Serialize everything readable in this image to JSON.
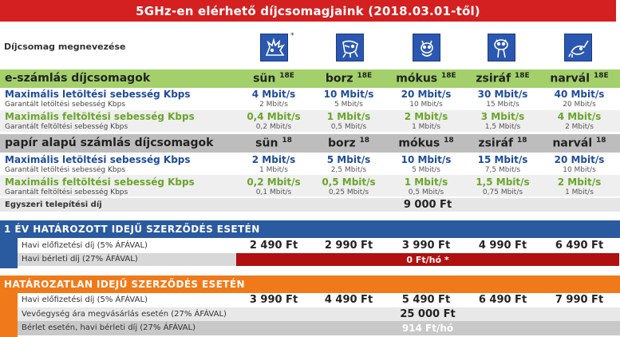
{
  "title": "5GHz-en elérhető díjcsomagjaink (2018.03.01-től)",
  "name_label": "Díjcsomag megnevezése",
  "icon_star": "*",
  "icons": [
    "hedgehog-icon",
    "badger-icon",
    "squirrel-icon",
    "giraffe-icon",
    "narwhal-icon"
  ],
  "e_section": {
    "label": "e-számlás díjcsomagok",
    "packages": [
      {
        "name": "sün",
        "sup": "18E"
      },
      {
        "name": "borz",
        "sup": "18E"
      },
      {
        "name": "mókus",
        "sup": "18E"
      },
      {
        "name": "zsiráf",
        "sup": "18E"
      },
      {
        "name": "narvál",
        "sup": "18E"
      }
    ],
    "max_down_label": "Maximális letöltési sebesség Kbps",
    "max_down": [
      "4 Mbit/s",
      "10 Mbit/s",
      "20 Mbit/s",
      "30 Mbit/s",
      "40 Mbit/s"
    ],
    "guar_down_label": "Garantált letöltési sebesség  Kbps",
    "guar_down": [
      "2 Mbit/s",
      "5 Mbit/s",
      "10 Mbit/s",
      "15 Mbit/s",
      "20 Mbit/s"
    ],
    "max_up_label": "Maximális feltöltési sebesség  Kbps",
    "max_up": [
      "0,4 Mbit/s",
      "1 Mbit/s",
      "2 Mbit/s",
      "3 Mbit/s",
      "4 Mbit/s"
    ],
    "guar_up_label": "Garantált feltöltési sebesség  Kbps",
    "guar_up": [
      "0,2 Mbit/s",
      "0,5 Mbit/s",
      "1 Mbit/s",
      "1,5 Mbit/s",
      "2 Mbit/s"
    ]
  },
  "p_section": {
    "label": "papír alapú számlás díjcsomagok",
    "packages": [
      {
        "name": "sün",
        "sup": "18"
      },
      {
        "name": "borz",
        "sup": "18"
      },
      {
        "name": "mókus",
        "sup": "18"
      },
      {
        "name": "zsiráf",
        "sup": "18"
      },
      {
        "name": "narvál",
        "sup": "18"
      }
    ],
    "max_down_label": "Maximális letöltési sebesség Kbps",
    "max_down": [
      "2 Mbit/s",
      "5 Mbit/s",
      "10 Mbit/s",
      "15 Mbit/s",
      "20 Mbit/s"
    ],
    "guar_down_label": "Garantált letöltési sebesség  Kbps",
    "guar_down": [
      "1 Mbit/s",
      "2,5 Mbit/s",
      "5 Mbit/s",
      "7,5 Mbit/s",
      "10 Mbit/s"
    ],
    "max_up_label": "Maximális feltöltési sebesség  Kbps",
    "max_up": [
      "0,2 Mbit/s",
      "0,5 Mbit/s",
      "1 Mbit/s",
      "1,5 Mbit/s",
      "2 Mbit/s"
    ],
    "guar_up_label": "Garantált feltöltési sebesség  Kbps",
    "guar_up": [
      "0,1 Mbit/s",
      "0,25 Mbit/s",
      "0,5 Mbit/s",
      "0,75 Mbit/s",
      "1 Mbit/s"
    ]
  },
  "setup_fee_label": "Egyszeri telepítési díj",
  "setup_fee": "9 000 Ft",
  "fixed": {
    "title": "1 ÉV HATÁROZOTT IDEJŰ SZERZŐDÉS ESETÉN",
    "monthly_label": "Havi előfizetési díj (5% ÁFÁVAL)",
    "monthly": [
      "2 490 Ft",
      "2 990 Ft",
      "3 990 Ft",
      "4 990 Ft",
      "6 490 Ft"
    ],
    "rent_label": "Havi bérleti díj (27% ÁFÁVAL)",
    "rent": "0 Ft/hó *"
  },
  "indef": {
    "title": "HATÁROZATLAN IDEJŰ SZERZŐDÉS ESETÉN",
    "monthly_label": "Havi előfizetési díj (5% ÁFÁVAL)",
    "monthly": [
      "3 990 Ft",
      "4 490 Ft",
      "5 490 Ft",
      "6 490 Ft",
      "7 990 Ft"
    ],
    "buy_label": "Vevőegység ára megvásárlás esetén (27% ÁFÁVAL)",
    "buy": "25 000 Ft",
    "rent_label": "Bérlet esetén, havi bérleti díj (27% ÁFÁVAL)",
    "rent": "914 Ft/hó"
  },
  "colors": {
    "title_red": "#d42020",
    "green_header": "#a3d06a",
    "gray_header": "#bdbdbd",
    "blue_section": "#2a5aa0",
    "orange_section": "#f07a1a",
    "dark_red": "#b01010",
    "icon_blue": "#2a57b0"
  }
}
